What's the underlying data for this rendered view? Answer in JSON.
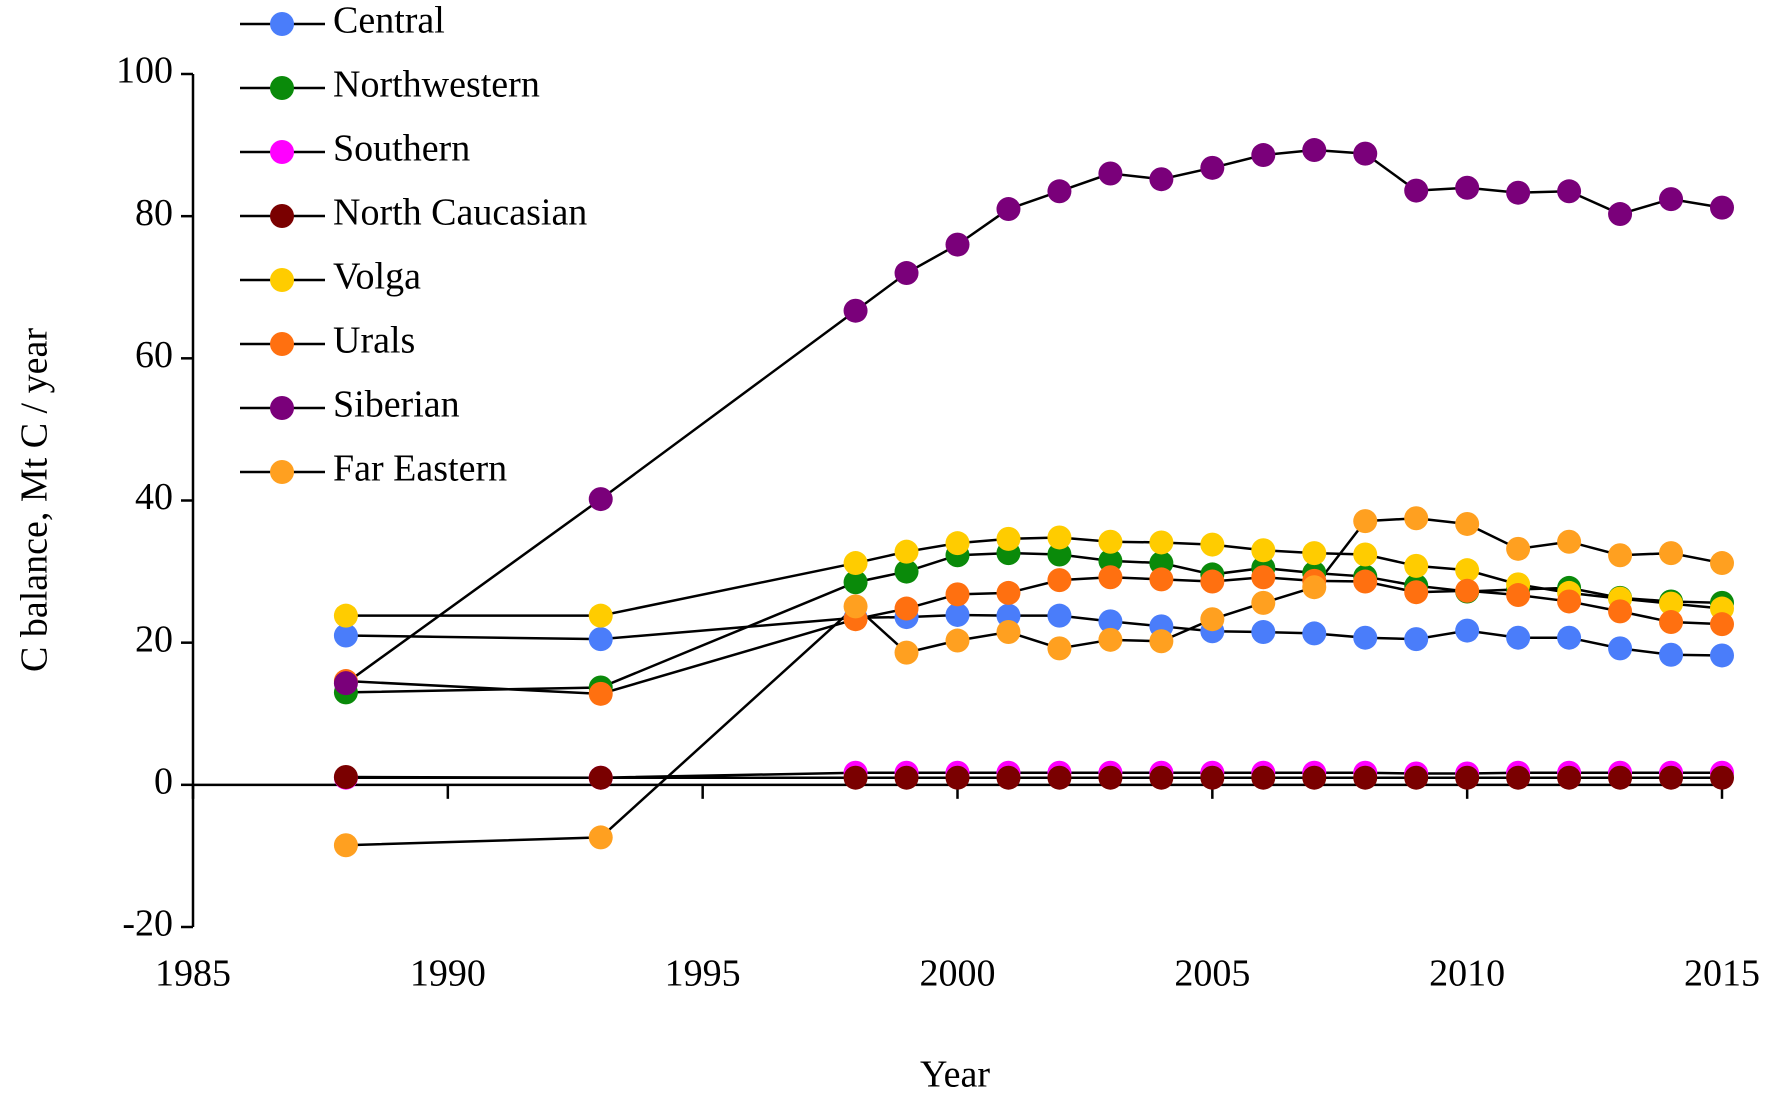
{
  "chart_data": {
    "type": "line",
    "x_label": "Year",
    "y_label": "C balance, Mt C / year",
    "x": [
      1988,
      1993,
      1998,
      1999,
      2000,
      2001,
      2002,
      2003,
      2004,
      2005,
      2006,
      2007,
      2008,
      2009,
      2010,
      2011,
      2012,
      2013,
      2014,
      2015
    ],
    "series": [
      {
        "name": "Central",
        "color": "#4a7dfa",
        "values": [
          21,
          20.5,
          23.5,
          23.6,
          23.9,
          23.8,
          23.8,
          23,
          22.3,
          21.6,
          21.5,
          21.3,
          20.7,
          20.5,
          21.7,
          20.7,
          20.7,
          19.2,
          18.3,
          18.2
        ]
      },
      {
        "name": "Northwestern",
        "color": "#0a8a0a",
        "values": [
          13,
          13.7,
          28.5,
          30,
          32.3,
          32.6,
          32.4,
          31.5,
          31.2,
          29.6,
          30.5,
          29.8,
          29.3,
          28,
          27.2,
          27.5,
          27.7,
          26.3,
          25.8,
          25.6
        ]
      },
      {
        "name": "Southern",
        "color": "#ff00ff",
        "values": [
          1,
          1,
          1.7,
          1.7,
          1.7,
          1.7,
          1.7,
          1.7,
          1.7,
          1.7,
          1.7,
          1.7,
          1.7,
          1.6,
          1.6,
          1.7,
          1.7,
          1.7,
          1.7,
          1.7
        ]
      },
      {
        "name": "North Caucasian",
        "color": "#7a0000",
        "values": [
          1.1,
          1,
          1,
          1,
          1,
          1,
          1,
          1,
          1,
          1,
          1,
          1,
          1,
          1,
          1,
          1,
          1,
          1,
          1,
          1
        ]
      },
      {
        "name": "Volga",
        "color": "#ffcc00",
        "values": [
          23.8,
          23.8,
          31.2,
          32.8,
          34,
          34.6,
          34.8,
          34.2,
          34.1,
          33.8,
          33,
          32.6,
          32.4,
          30.8,
          30.2,
          28.2,
          27,
          26.2,
          25.5,
          24.8
        ]
      },
      {
        "name": "Urals",
        "color": "#ff7010",
        "values": [
          14.6,
          12.8,
          23.3,
          24.8,
          26.8,
          27,
          28.8,
          29.2,
          28.9,
          28.6,
          29.2,
          28.7,
          28.6,
          27.1,
          27.3,
          26.7,
          25.8,
          24.4,
          22.9,
          22.6
        ]
      },
      {
        "name": "Siberian",
        "color": "#7a007a",
        "values": [
          14.3,
          40.2,
          66.7,
          72,
          76,
          81,
          83.5,
          86,
          85.2,
          86.8,
          88.6,
          89.3,
          88.8,
          83.6,
          84,
          83.3,
          83.5,
          80.3,
          82.4,
          81.2
        ]
      },
      {
        "name": "Far Eastern",
        "color": "#ffa020",
        "values": [
          -8.5,
          -7.4,
          25.1,
          18.6,
          20.3,
          21.5,
          19.2,
          20.4,
          20.2,
          23.3,
          25.6,
          27.8,
          37.1,
          37.5,
          36.7,
          33.2,
          34.2,
          32.3,
          32.6,
          31.2
        ]
      }
    ],
    "xlim": [
      1985,
      2015
    ],
    "xticks": [
      1985,
      1990,
      1995,
      2000,
      2005,
      2010,
      2015
    ],
    "ylim": [
      -20,
      100
    ],
    "yticks": [
      -20,
      0,
      20,
      40,
      60,
      80,
      100
    ],
    "grid": false,
    "legend": "upper left"
  }
}
